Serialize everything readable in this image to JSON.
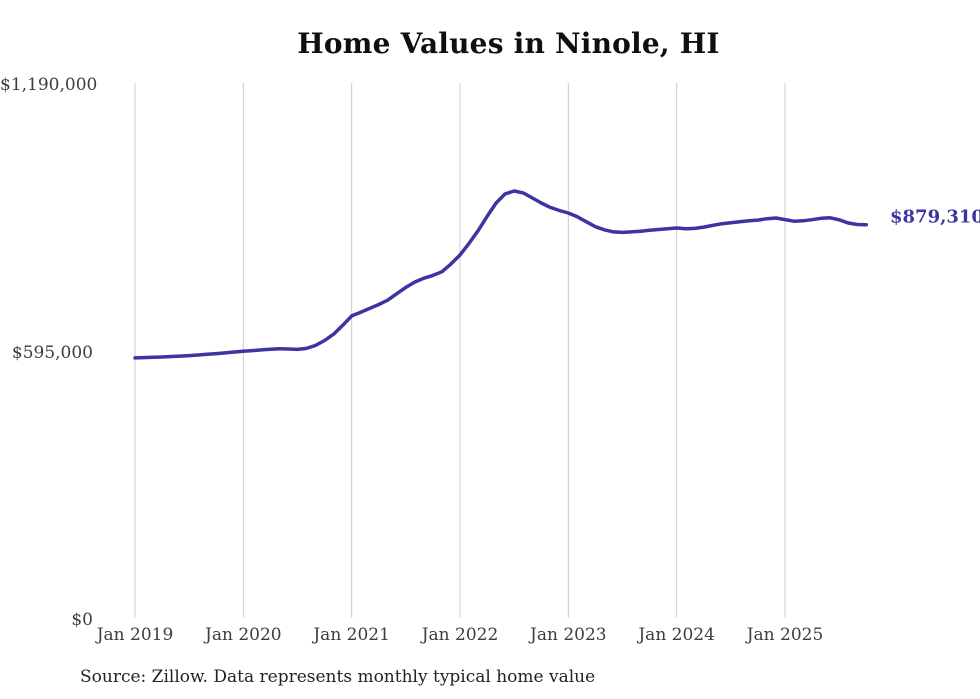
{
  "title": "Home Values in Ninole, HI",
  "source_note": "Source: Zillow. Data represents monthly typical home value",
  "latest_value_label": "$879,310",
  "colors": {
    "line": "#3c35a0",
    "latest_label": "#3c35a0",
    "gridline": "#cccccc",
    "title_text": "#0f0f0f",
    "axis_text": "#3d3d3d",
    "source_text": "#222222",
    "background": "#ffffff"
  },
  "chart_data": {
    "type": "line",
    "title": "Home Values in Ninole, HI",
    "xlabel": "",
    "ylabel": "",
    "ylim": [
      0,
      1190000
    ],
    "grid": "vertical",
    "legend": "none",
    "y_ticks": [
      {
        "label": "$1,190,000",
        "value": 1190000
      },
      {
        "label": "$595,000",
        "value": 595000
      },
      {
        "label": "$0",
        "value": 0
      }
    ],
    "x_tick_labels": [
      "Jan 2019",
      "Jan 2020",
      "Jan 2021",
      "Jan 2022",
      "Jan 2023",
      "Jan 2024",
      "Jan 2025"
    ],
    "x_tick_month_indices": [
      0,
      12,
      24,
      36,
      48,
      60,
      72
    ],
    "months_start": "2019-01",
    "months_end": "2025-10",
    "annotation": {
      "text": "$879,310",
      "attached_to": "last-point"
    },
    "latest_value": 879310,
    "series": [
      {
        "name": "Typical home value",
        "unit": "USD",
        "values": [
          583000,
          583600,
          584300,
          585100,
          586000,
          587000,
          588100,
          589400,
          590900,
          592500,
          594200,
          596100,
          598000,
          599300,
          600700,
          602100,
          603200,
          602700,
          601800,
          604100,
          610900,
          621700,
          635600,
          655300,
          676400,
          684600,
          693100,
          701800,
          711600,
          725900,
          739800,
          751900,
          760300,
          766500,
          774400,
          792000,
          811900,
          837600,
          865900,
          897700,
          927600,
          947800,
          954200,
          950100,
          938900,
          927600,
          917800,
          910900,
          905300,
          896900,
          885700,
          874800,
          867900,
          863200,
          862100,
          863200,
          864800,
          866800,
          868600,
          870200,
          871900,
          870100,
          871000,
          873900,
          877700,
          881600,
          883800,
          885900,
          887900,
          889400,
          892700,
          894100,
          890500,
          887000,
          887900,
          890300,
          893400,
          894700,
          890100,
          883000,
          879800,
          879310
        ]
      }
    ]
  }
}
